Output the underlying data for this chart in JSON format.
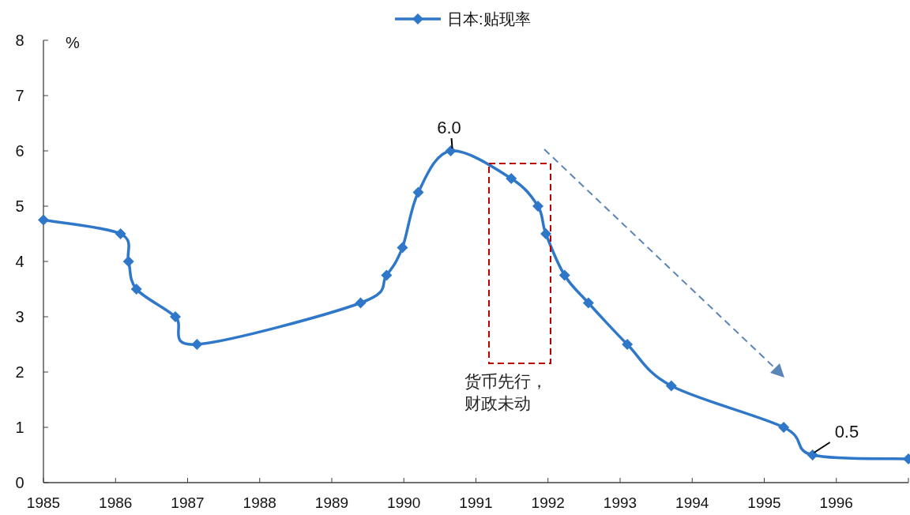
{
  "chart_data": {
    "type": "line",
    "x": [
      1985.0,
      1986.07,
      1986.18,
      1986.29,
      1986.83,
      1987.13,
      1989.4,
      1989.76,
      1989.98,
      1990.2,
      1990.65,
      1991.49,
      1991.86,
      1991.97,
      1992.23,
      1992.56,
      1993.1,
      1993.71,
      1995.27,
      1995.67,
      1997.0
    ],
    "series": [
      {
        "name": "日本:贴现率",
        "color": "#2f77c9",
        "values": [
          4.75,
          4.5,
          4.0,
          3.5,
          3.0,
          2.5,
          3.25,
          3.75,
          4.25,
          5.25,
          6.0,
          5.5,
          5.0,
          4.5,
          3.75,
          3.25,
          2.5,
          1.75,
          1.0,
          0.5,
          0.43
        ],
        "value_labels": [
          null,
          null,
          null,
          null,
          null,
          null,
          null,
          null,
          null,
          null,
          "6.0",
          null,
          null,
          null,
          null,
          null,
          null,
          null,
          null,
          "0.5",
          null
        ]
      }
    ],
    "ylabel": "%",
    "xlim": [
      1985,
      1997
    ],
    "xticks": [
      1985,
      1986,
      1987,
      1988,
      1989,
      1990,
      1991,
      1992,
      1993,
      1994,
      1995,
      1996,
      {
        "value": 1997,
        "label": null
      }
    ],
    "ylim": [
      0,
      8
    ],
    "yticks": [
      0,
      1,
      2,
      3,
      4,
      5,
      6,
      7,
      8
    ],
    "marker": "diamond",
    "legend": "top",
    "grid": false,
    "annotations": [
      "货币先行，",
      "财政未动"
    ]
  }
}
